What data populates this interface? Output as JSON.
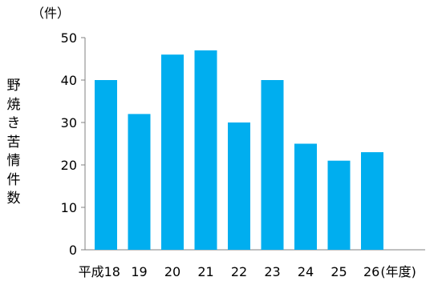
{
  "chart_data": {
    "type": "bar",
    "categories": [
      "平成18",
      "19",
      "20",
      "21",
      "22",
      "23",
      "24",
      "25",
      "26"
    ],
    "values": [
      40,
      32,
      46,
      47,
      30,
      40,
      25,
      21,
      23
    ],
    "unit_label": "（件）",
    "ylabel": "野焼き苦情件数",
    "xlabel": "(年度)",
    "ylim": [
      0,
      50
    ],
    "yticks": [
      0,
      10,
      20,
      30,
      40,
      50
    ],
    "grid": false,
    "legend": "none",
    "colors": {
      "bar": "#00AEEF",
      "axis": "#808080",
      "text": "#000000"
    }
  }
}
